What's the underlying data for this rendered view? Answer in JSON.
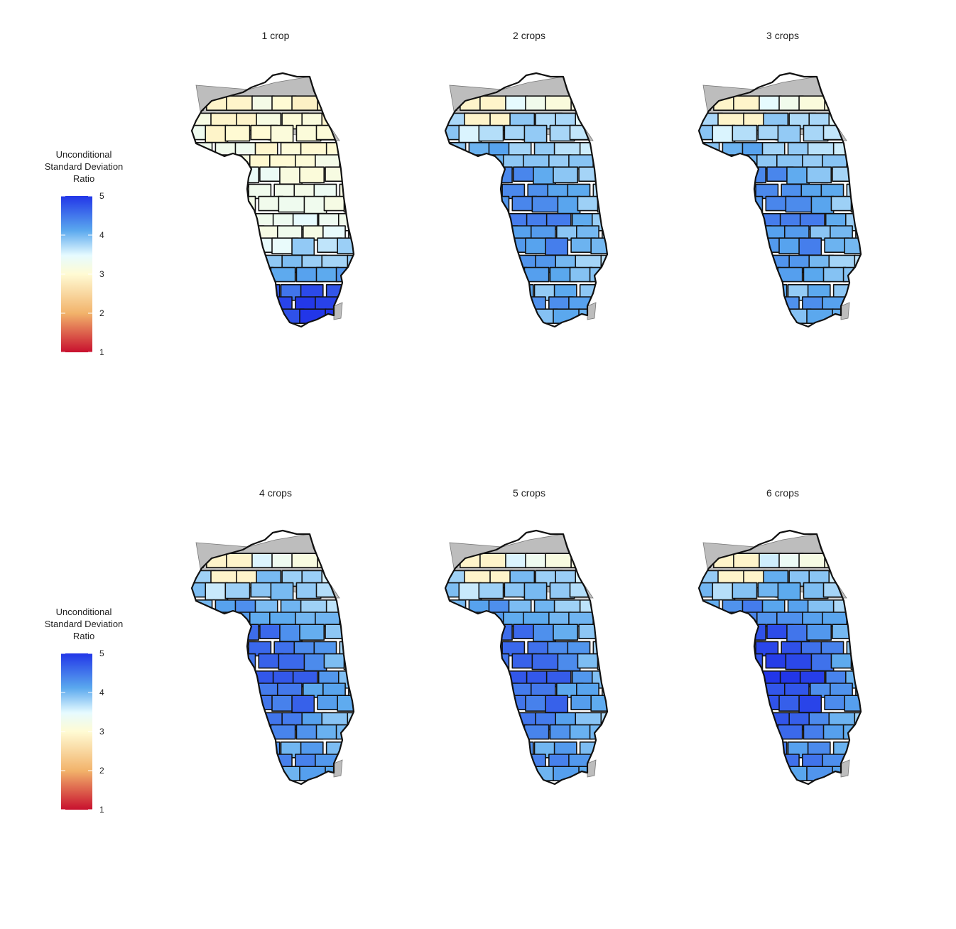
{
  "legend": {
    "title_lines": [
      "Unconditional",
      "Standard Deviation",
      "Ratio"
    ],
    "ticks": [
      5,
      4,
      3,
      2,
      1
    ],
    "range": [
      1,
      5
    ],
    "palette": [
      "#c8102e",
      "#f2b36b",
      "#fffbd4",
      "#e6fbff",
      "#5aa8ee",
      "#2236e8"
    ]
  },
  "colors": {
    "no_data_region": "#bdbdbd",
    "border": "#111111"
  },
  "map_data": {
    "type": "choropleth",
    "region": "Illinois counties",
    "variable": "Unconditional Standard Deviation Ratio",
    "panels": [
      {
        "title": "1 crop",
        "pattern": "south"
      },
      {
        "title": "2 crops",
        "pattern": "central"
      },
      {
        "title": "3 crops",
        "pattern": "central"
      },
      {
        "title": "4 crops",
        "pattern": "central-strong"
      },
      {
        "title": "5 crops",
        "pattern": "central-strong"
      },
      {
        "title": "6 crops",
        "pattern": "central-max"
      }
    ]
  }
}
